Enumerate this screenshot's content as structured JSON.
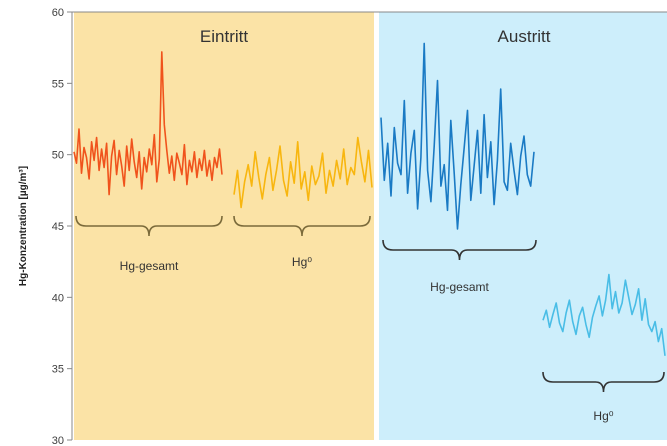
{
  "chart_data": {
    "type": "line",
    "ylabel": "Hg-Konzentration [µg/m³]",
    "ylim": [
      30,
      60
    ],
    "yticks": [
      30,
      35,
      40,
      45,
      50,
      55,
      60
    ],
    "regions": [
      {
        "title": "Eintritt",
        "color": "#fbe3a6"
      },
      {
        "title": "Austritt",
        "color": "#cdeefb"
      }
    ],
    "series": [
      {
        "name": "Hg-gesamt",
        "region": "Eintritt",
        "color": "#f0531c",
        "values": [
          50.2,
          49.4,
          51.8,
          48.7,
          50.5,
          49.8,
          48.3,
          50.9,
          49.6,
          51.2,
          48.9,
          50.4,
          49.1,
          50.8,
          47.2,
          49.9,
          51.0,
          48.6,
          50.3,
          49.2,
          47.8,
          50.6,
          48.9,
          51.1,
          49.5,
          48.4,
          50.2,
          47.6,
          49.8,
          48.8,
          50.4,
          49.3,
          51.4,
          48.1,
          49.7,
          57.2,
          52.1,
          50.3,
          48.7,
          49.9,
          48.2,
          50.1,
          49.4,
          48.6,
          50.7,
          47.9,
          49.6,
          48.8,
          50.2,
          48.4,
          49.7,
          48.9,
          50.3,
          48.5,
          49.6,
          48.2,
          49.8,
          49.1,
          50.4,
          48.6
        ]
      },
      {
        "name": "Hg⁰",
        "region": "Eintritt",
        "color": "#f8b60f",
        "values": [
          47.2,
          48.9,
          46.3,
          48.1,
          49.3,
          47.8,
          50.2,
          48.4,
          46.9,
          48.6,
          49.8,
          47.5,
          48.9,
          50.6,
          48.2,
          47.1,
          49.5,
          48.0,
          50.9,
          47.6,
          48.8,
          46.8,
          49.2,
          47.9,
          48.5,
          50.1,
          47.3,
          48.9,
          47.8,
          49.6,
          48.3,
          50.4,
          47.9,
          49.1,
          48.6,
          51.2,
          49.5,
          48.1,
          50.3,
          47.7
        ]
      },
      {
        "name": "Hg-gesamt",
        "region": "Austritt",
        "color": "#1a7ac4",
        "values": [
          52.6,
          48.2,
          50.8,
          47.1,
          51.9,
          49.4,
          48.6,
          53.8,
          47.3,
          50.1,
          51.7,
          46.2,
          49.8,
          57.8,
          48.9,
          46.7,
          50.6,
          55.2,
          47.8,
          49.3,
          46.1,
          52.4,
          48.7,
          44.8,
          47.9,
          50.5,
          53.1,
          46.8,
          49.2,
          51.7,
          47.3,
          52.8,
          48.4,
          50.9,
          46.5,
          49.6,
          54.6,
          48.1,
          47.5,
          50.8,
          48.9,
          47.2,
          49.9,
          51.3,
          48.6,
          47.8,
          50.2
        ]
      },
      {
        "name": "Hg⁰",
        "region": "Austritt",
        "color": "#49bde6",
        "values": [
          38.4,
          39.1,
          37.9,
          38.8,
          39.6,
          38.2,
          37.6,
          38.9,
          39.8,
          38.3,
          37.4,
          38.7,
          39.3,
          38.1,
          37.2,
          38.6,
          39.4,
          40.1,
          38.7,
          39.8,
          41.6,
          39.2,
          40.4,
          38.9,
          39.6,
          41.2,
          40.0,
          38.8,
          39.5,
          40.6,
          38.4,
          39.9,
          38.1,
          37.6,
          38.3,
          36.9,
          37.8,
          35.9
        ]
      }
    ],
    "brackets": [
      {
        "label": "Hg-gesamt",
        "region": "Eintritt",
        "color": "#7a6a3a"
      },
      {
        "label": "Hg⁰",
        "region": "Eintritt",
        "color": "#7a6a3a"
      },
      {
        "label": "Hg-gesamt",
        "region": "Austritt",
        "color": "#333333"
      },
      {
        "label": "Hg⁰",
        "region": "Austritt",
        "color": "#333333"
      }
    ]
  }
}
